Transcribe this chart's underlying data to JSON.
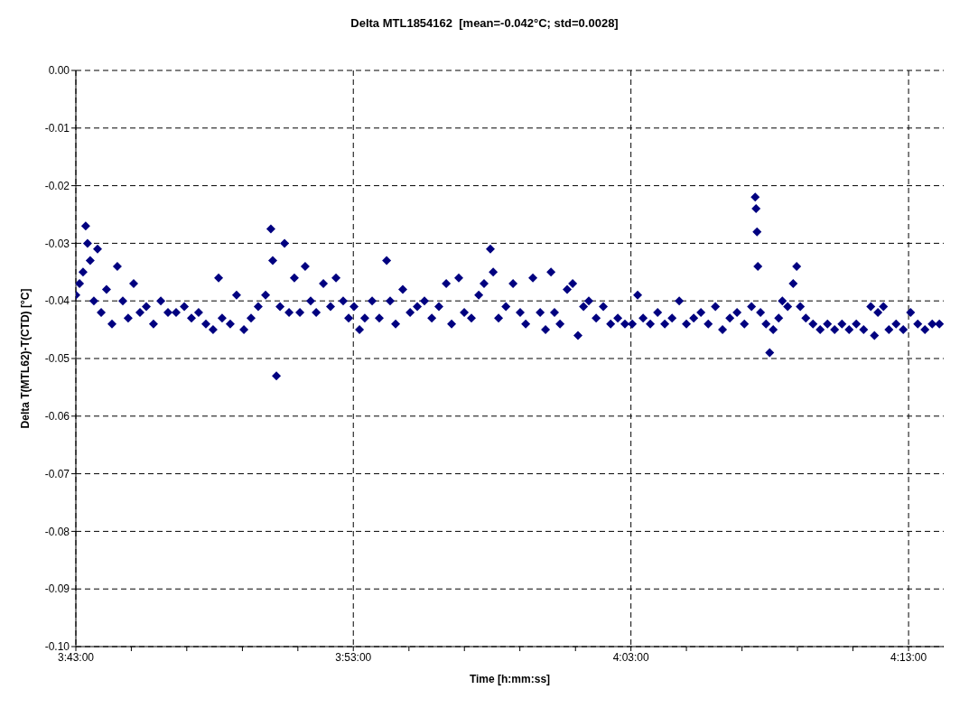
{
  "chart_data": {
    "type": "scatter",
    "title": "Delta MTL1854162  [mean=-0.042°C; std=0.0028]",
    "xlabel": "Time [h:mm:ss]",
    "ylabel": "Delta T(MTL62)-T(CTD) [°C]",
    "marker": "diamond",
    "grid": true,
    "xlim": [
      3.7167,
      4.2378
    ],
    "ylim": [
      -0.1,
      0
    ],
    "xticks": [
      {
        "value": 3.7167,
        "label": "3:43:00"
      },
      {
        "value": 3.75,
        "label": null
      },
      {
        "value": 3.7833,
        "label": null
      },
      {
        "value": 3.8167,
        "label": null
      },
      {
        "value": 3.85,
        "label": null
      },
      {
        "value": 3.8833,
        "label": "3:53:00"
      },
      {
        "value": 3.9167,
        "label": null
      },
      {
        "value": 3.95,
        "label": null
      },
      {
        "value": 3.9833,
        "label": null
      },
      {
        "value": 4.0167,
        "label": null
      },
      {
        "value": 4.05,
        "label": "4:03:00"
      },
      {
        "value": 4.0833,
        "label": null
      },
      {
        "value": 4.1167,
        "label": null
      },
      {
        "value": 4.15,
        "label": null
      },
      {
        "value": 4.1833,
        "label": null
      },
      {
        "value": 4.2167,
        "label": "4:13:00"
      }
    ],
    "yticks": [
      {
        "value": 0,
        "label": "0.00"
      },
      {
        "value": -0.01,
        "label": "-0.01"
      },
      {
        "value": -0.02,
        "label": "-0.02"
      },
      {
        "value": -0.03,
        "label": "-0.03"
      },
      {
        "value": -0.04,
        "label": "-0.04"
      },
      {
        "value": -0.05,
        "label": "-0.05"
      },
      {
        "value": -0.06,
        "label": "-0.06"
      },
      {
        "value": -0.07,
        "label": "-0.07"
      },
      {
        "value": -0.08,
        "label": "-0.08"
      },
      {
        "value": -0.09,
        "label": "-0.09"
      },
      {
        "value": -0.1,
        "label": "-0.10"
      }
    ],
    "series": [
      {
        "color": "#000080",
        "x": [
          3.7167,
          3.7189,
          3.721,
          3.7226,
          3.7237,
          3.7253,
          3.7275,
          3.7297,
          3.7319,
          3.7351,
          3.7384,
          3.7416,
          3.7449,
          3.7481,
          3.7514,
          3.7552,
          3.759,
          3.7633,
          3.7677,
          3.772,
          3.7769,
          3.7818,
          3.7861,
          3.7904,
          3.7948,
          3.7991,
          3.8024,
          3.8045,
          3.8094,
          3.8132,
          3.8176,
          3.8219,
          3.8262,
          3.8306,
          3.8338,
          3.8349,
          3.8371,
          3.8393,
          3.842,
          3.8447,
          3.8479,
          3.8512,
          3.8544,
          3.8577,
          3.861,
          3.8653,
          3.8696,
          3.8729,
          3.8772,
          3.8805,
          3.8837,
          3.887,
          3.8902,
          3.8946,
          3.8989,
          3.9033,
          3.9054,
          3.9087,
          3.913,
          3.9174,
          3.9217,
          3.926,
          3.9304,
          3.9347,
          3.9391,
          3.9423,
          3.9466,
          3.9499,
          3.9542,
          3.9586,
          3.9618,
          3.9656,
          3.9673,
          3.9705,
          3.9749,
          3.9792,
          3.9835,
          3.9868,
          3.9911,
          3.9955,
          3.9987,
          4.002,
          4.0041,
          4.0074,
          4.0117,
          4.015,
          4.0182,
          4.0215,
          4.0247,
          4.0291,
          4.0334,
          4.0378,
          4.0421,
          4.0464,
          4.0508,
          4.054,
          4.0573,
          4.0616,
          4.066,
          4.0703,
          4.0747,
          4.079,
          4.0833,
          4.0877,
          4.092,
          4.0964,
          4.1007,
          4.105,
          4.1094,
          4.1137,
          4.1181,
          4.1224,
          4.1246,
          4.1251,
          4.1257,
          4.1262,
          4.1278,
          4.1311,
          4.1333,
          4.1354,
          4.1387,
          4.1409,
          4.1441,
          4.1474,
          4.1495,
          4.1517,
          4.155,
          4.1593,
          4.1636,
          4.168,
          4.1723,
          4.1767,
          4.181,
          4.1853,
          4.1897,
          4.194,
          4.1962,
          4.1983,
          4.2016,
          4.2049,
          4.2092,
          4.2135,
          4.2179,
          4.2222,
          4.2265,
          4.2309,
          4.2352
        ],
        "values": [
          -0.039,
          -0.037,
          -0.035,
          -0.027,
          -0.03,
          -0.033,
          -0.04,
          -0.031,
          -0.042,
          -0.038,
          -0.044,
          -0.034,
          -0.04,
          -0.043,
          -0.037,
          -0.042,
          -0.041,
          -0.044,
          -0.04,
          -0.042,
          -0.042,
          -0.041,
          -0.043,
          -0.042,
          -0.044,
          -0.045,
          -0.036,
          -0.043,
          -0.044,
          -0.039,
          -0.045,
          -0.043,
          -0.041,
          -0.039,
          -0.0275,
          -0.033,
          -0.053,
          -0.041,
          -0.03,
          -0.042,
          -0.036,
          -0.042,
          -0.034,
          -0.04,
          -0.042,
          -0.037,
          -0.041,
          -0.036,
          -0.04,
          -0.043,
          -0.041,
          -0.045,
          -0.043,
          -0.04,
          -0.043,
          -0.033,
          -0.04,
          -0.044,
          -0.038,
          -0.042,
          -0.041,
          -0.04,
          -0.043,
          -0.041,
          -0.037,
          -0.044,
          -0.036,
          -0.042,
          -0.043,
          -0.039,
          -0.037,
          -0.031,
          -0.035,
          -0.043,
          -0.041,
          -0.037,
          -0.042,
          -0.044,
          -0.036,
          -0.042,
          -0.045,
          -0.035,
          -0.042,
          -0.044,
          -0.038,
          -0.037,
          -0.046,
          -0.041,
          -0.04,
          -0.043,
          -0.041,
          -0.044,
          -0.043,
          -0.044,
          -0.044,
          -0.039,
          -0.043,
          -0.044,
          -0.042,
          -0.044,
          -0.043,
          -0.04,
          -0.044,
          -0.043,
          -0.042,
          -0.044,
          -0.041,
          -0.045,
          -0.043,
          -0.042,
          -0.044,
          -0.041,
          -0.022,
          -0.024,
          -0.028,
          -0.034,
          -0.042,
          -0.044,
          -0.049,
          -0.045,
          -0.043,
          -0.04,
          -0.041,
          -0.037,
          -0.034,
          -0.041,
          -0.043,
          -0.044,
          -0.045,
          -0.044,
          -0.045,
          -0.044,
          -0.045,
          -0.044,
          -0.045,
          -0.041,
          -0.046,
          -0.042,
          -0.041,
          -0.045,
          -0.044,
          -0.045,
          -0.042,
          -0.044,
          -0.045,
          -0.044,
          -0.044
        ]
      }
    ]
  }
}
